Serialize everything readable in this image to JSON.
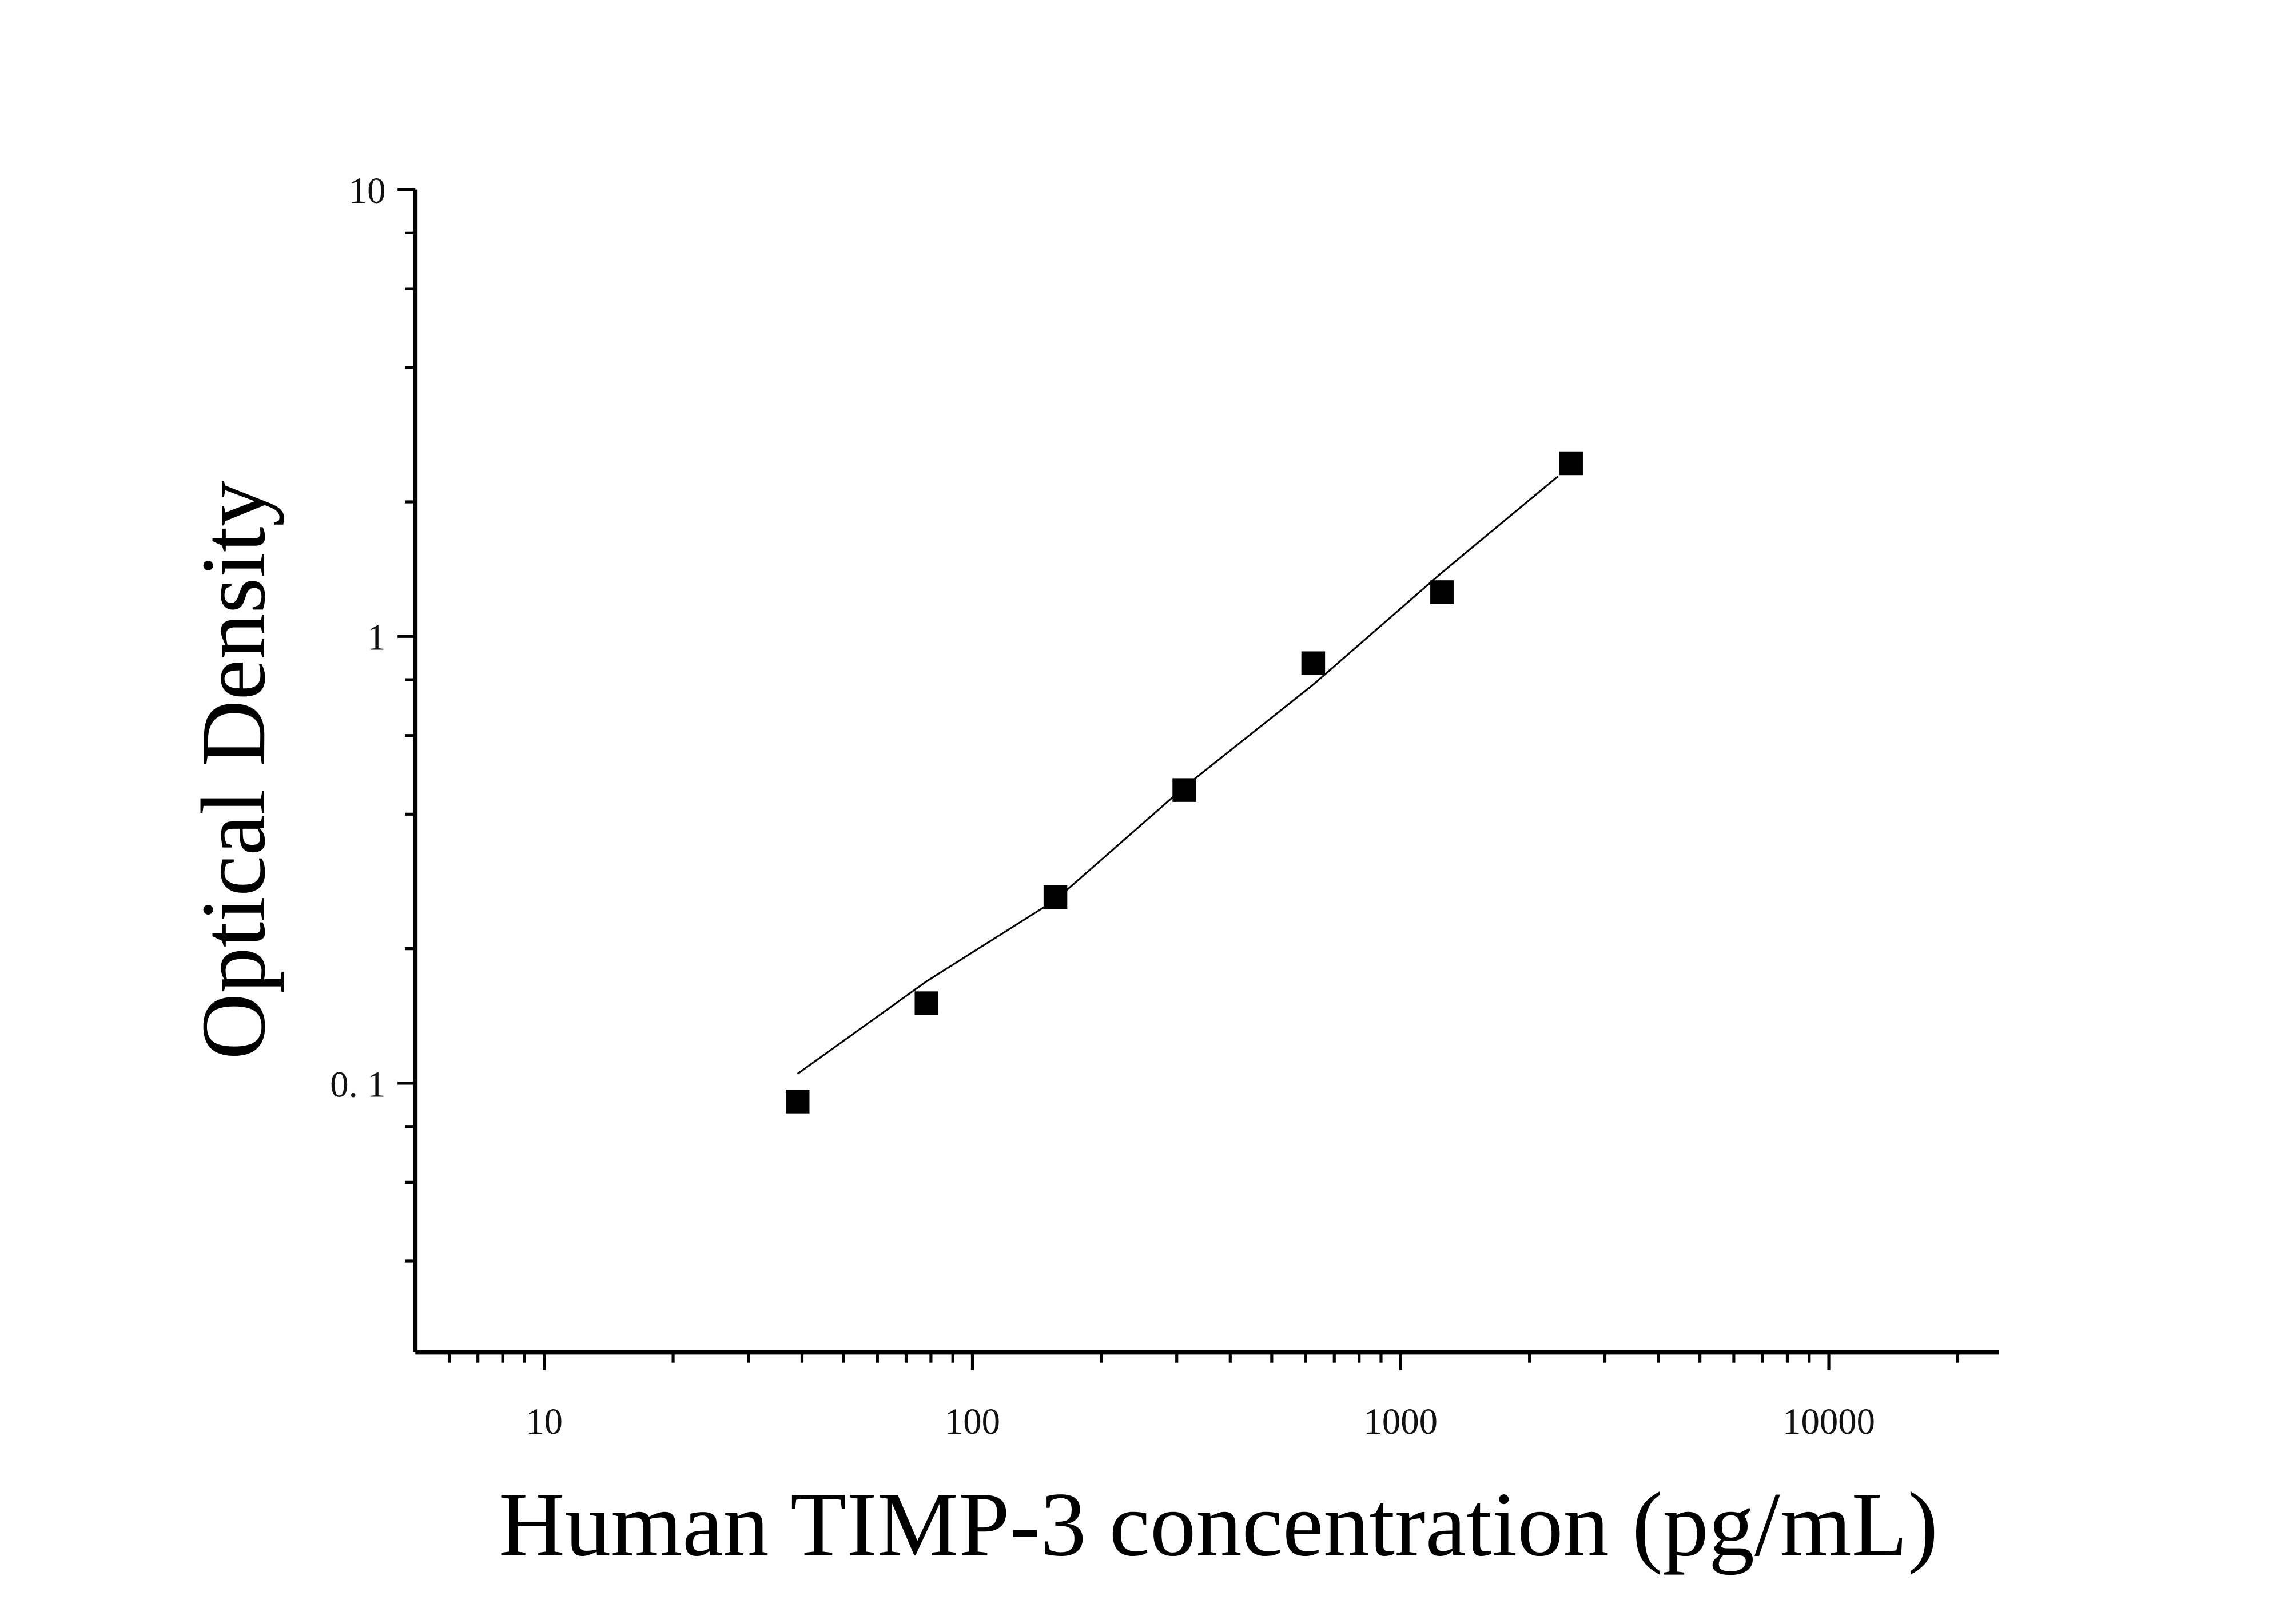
{
  "chart_data": {
    "type": "scatter",
    "x_label": "Human TIMP-3 concentration (pg/mL)",
    "y_label": "Optical Density",
    "log_x": true,
    "log_y": true,
    "xlim": [
      5,
      25000
    ],
    "ylim": [
      0.025,
      10
    ],
    "xticks": [
      10,
      100,
      1000,
      10000
    ],
    "yticks": [
      {
        "value": 0.1,
        "label": "0. 1"
      },
      1,
      10
    ],
    "xminor_ticks": [
      6,
      7,
      8,
      9,
      20,
      30,
      40,
      50,
      60,
      70,
      80,
      90,
      200,
      300,
      400,
      500,
      600,
      700,
      800,
      900,
      2000,
      3000,
      4000,
      5000,
      6000,
      7000,
      8000,
      9000,
      20000
    ],
    "yminor_ticks": [
      0.04,
      0.06,
      0.08,
      0.2,
      0.4,
      0.6,
      0.8,
      2,
      4,
      6,
      8
    ],
    "series": [
      {
        "type": "scatter",
        "color": "#000000",
        "x": [
          39.06,
          78.13,
          156.25,
          312.5,
          625,
          1250,
          2500
        ],
        "values": [
          0.091,
          0.151,
          0.261,
          0.453,
          0.871,
          1.256,
          2.44
        ]
      },
      {
        "type": "line",
        "color": "#000000",
        "x": [
          39.06,
          78.13,
          156.25,
          312.5,
          625,
          1250,
          2328
        ],
        "values": [
          0.105,
          0.169,
          0.257,
          0.46,
          0.78,
          1.39,
          2.28
        ]
      }
    ]
  }
}
